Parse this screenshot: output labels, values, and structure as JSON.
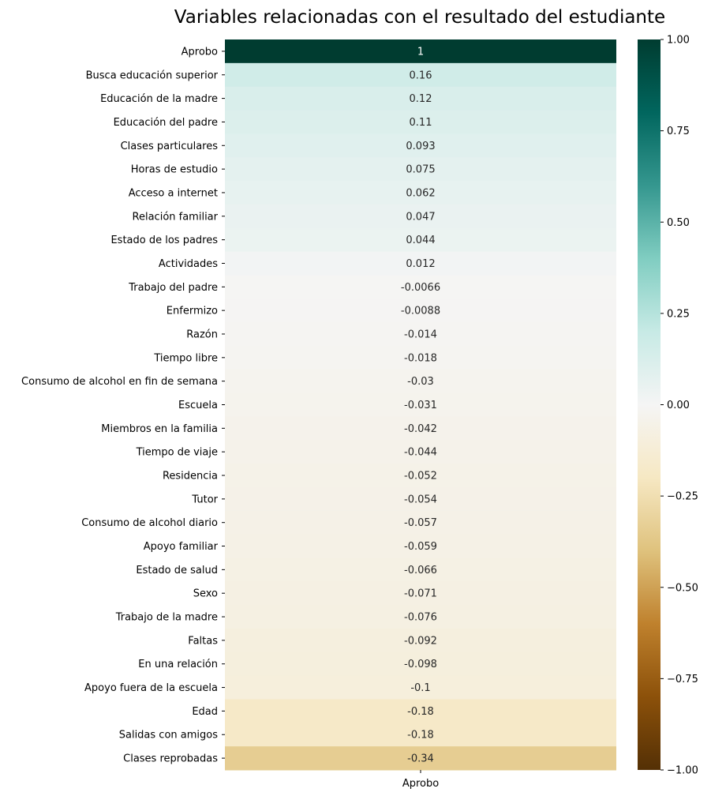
{
  "chart_data": {
    "type": "heatmap",
    "title": "Variables relacionadas con el resultado del estudiante",
    "x_categories": [
      "Aprobo"
    ],
    "y_categories": [
      "Aprobo",
      "Busca educación superior",
      "Educación de la madre",
      "Educación del padre",
      "Clases particulares",
      "Horas de estudio",
      "Acceso a internet",
      "Relación familiar",
      "Estado de los padres",
      "Actividades",
      "Trabajo del padre",
      "Enfermizo",
      "Razón",
      "Tiempo libre",
      "Consumo de alcohol en fin de semana",
      "Escuela",
      "Miembros en la familia",
      "Tiempo de viaje",
      "Residencia",
      "Tutor",
      "Consumo de alcohol diario",
      "Apoyo familiar",
      "Estado de salud",
      "Sexo",
      "Trabajo de la madre",
      "Faltas",
      "En una relación",
      "Apoyo fuera de la escuela",
      "Edad",
      "Salidas con amigos",
      "Clases reprobadas"
    ],
    "values": [
      1,
      0.16,
      0.12,
      0.11,
      0.093,
      0.075,
      0.062,
      0.047,
      0.044,
      0.012,
      -0.0066,
      -0.0088,
      -0.014,
      -0.018,
      -0.03,
      -0.031,
      -0.042,
      -0.044,
      -0.052,
      -0.054,
      -0.057,
      -0.059,
      -0.066,
      -0.071,
      -0.076,
      -0.092,
      -0.098,
      -0.1,
      -0.18,
      -0.18,
      -0.34
    ],
    "value_labels": [
      "1",
      "0.16",
      "0.12",
      "0.11",
      "0.093",
      "0.075",
      "0.062",
      "0.047",
      "0.044",
      "0.012",
      "-0.0066",
      "-0.0088",
      "-0.014",
      "-0.018",
      "-0.03",
      "-0.031",
      "-0.042",
      "-0.044",
      "-0.052",
      "-0.054",
      "-0.057",
      "-0.059",
      "-0.066",
      "-0.071",
      "-0.076",
      "-0.092",
      "-0.098",
      "-0.1",
      "-0.18",
      "-0.18",
      "-0.34"
    ],
    "colormap": "BrBG",
    "vmin": -1,
    "vmax": 1,
    "colorbar_ticks": [
      1,
      0.75,
      0.5,
      0.25,
      0,
      -0.25,
      -0.5,
      -0.75,
      -1
    ],
    "colorbar_tick_labels": [
      "1.00",
      "0.75",
      "0.50",
      "0.25",
      "0.00",
      "−0.25",
      "−0.50",
      "−0.75",
      "−1.00"
    ],
    "annotated": true
  }
}
